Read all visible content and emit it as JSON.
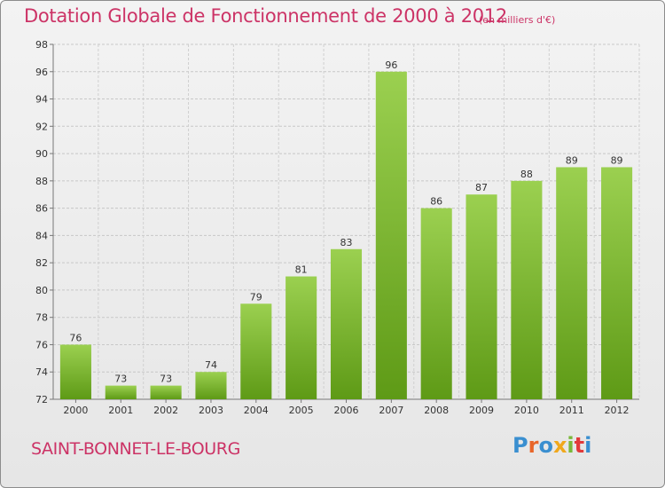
{
  "header": {
    "title": "Dotation Globale de Fonctionnement de 2000 à 2012",
    "subtitle": "(en milliers d'€)"
  },
  "footer": {
    "commune": "SAINT-BONNET-LE-BOURG",
    "logo_text": "Proxiti"
  },
  "colors": {
    "title": "#cc3366",
    "bar_top": "#9bd050",
    "bar_bottom": "#5e9a16",
    "logo_letters": [
      "#3a8fd0",
      "#e8662a",
      "#3a8fd0",
      "#f0a81c",
      "#7ab83a",
      "#e23a3a",
      "#3a8fd0"
    ]
  },
  "chart_data": {
    "type": "bar",
    "title": "Dotation Globale de Fonctionnement de 2000 à 2012",
    "subtitle": "(en milliers d'€)",
    "xlabel": "",
    "ylabel": "",
    "categories": [
      "2000",
      "2001",
      "2002",
      "2003",
      "2004",
      "2005",
      "2006",
      "2007",
      "2008",
      "2009",
      "2010",
      "2011",
      "2012"
    ],
    "values": [
      76,
      73,
      73,
      74,
      79,
      81,
      83,
      96,
      86,
      87,
      88,
      89,
      89
    ],
    "ylim": [
      72,
      98
    ],
    "yticks": [
      72,
      74,
      76,
      78,
      80,
      82,
      84,
      86,
      88,
      90,
      92,
      94,
      96,
      98
    ],
    "grid": true,
    "legend": "none"
  }
}
